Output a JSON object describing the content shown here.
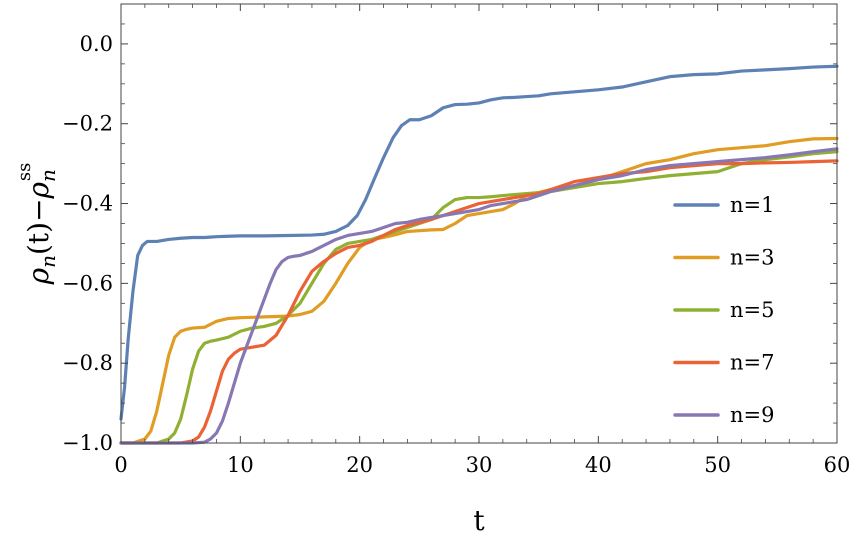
{
  "chart_data": {
    "type": "line",
    "xlabel": "t",
    "ylabel": {
      "rho": "ρ",
      "sub": "n",
      "mid": "(t)−",
      "sup": "ss"
    },
    "xlim": [
      0,
      60
    ],
    "ylim": [
      -1.0,
      0.1
    ],
    "xticks": [
      0,
      10,
      20,
      30,
      40,
      50,
      60
    ],
    "xtick_labels": [
      "0",
      "10",
      "20",
      "30",
      "40",
      "50",
      "60"
    ],
    "yticks": [
      0.0,
      -0.2,
      -0.4,
      -0.6,
      -0.8,
      -1.0
    ],
    "ytick_labels": [
      "0.0",
      "−0.2",
      "−0.4",
      "−0.6",
      "−0.8",
      "−1.0"
    ],
    "grid": false,
    "legend_position": "right",
    "series": [
      {
        "name": "n=1",
        "color": "#5E81B5",
        "x": [
          0,
          0.3,
          0.6,
          1.0,
          1.4,
          1.8,
          2.2,
          3,
          4,
          5,
          6,
          7,
          8,
          9,
          10,
          12,
          14,
          16,
          17,
          18,
          19,
          19.8,
          20.5,
          21.2,
          22,
          22.8,
          23.5,
          24.2,
          25,
          26,
          27,
          28,
          29,
          30,
          31,
          32,
          33,
          34,
          35,
          36,
          38,
          40,
          42,
          44,
          46,
          48,
          50,
          52,
          54,
          56,
          58,
          60
        ],
        "y": [
          -0.94,
          -0.86,
          -0.74,
          -0.62,
          -0.53,
          -0.505,
          -0.495,
          -0.495,
          -0.49,
          -0.487,
          -0.485,
          -0.485,
          -0.483,
          -0.482,
          -0.481,
          -0.481,
          -0.48,
          -0.479,
          -0.477,
          -0.47,
          -0.455,
          -0.43,
          -0.39,
          -0.34,
          -0.285,
          -0.235,
          -0.205,
          -0.19,
          -0.19,
          -0.18,
          -0.16,
          -0.152,
          -0.151,
          -0.148,
          -0.14,
          -0.135,
          -0.134,
          -0.132,
          -0.13,
          -0.125,
          -0.12,
          -0.115,
          -0.108,
          -0.095,
          -0.082,
          -0.077,
          -0.075,
          -0.068,
          -0.065,
          -0.062,
          -0.058,
          -0.056
        ]
      },
      {
        "name": "n=3",
        "color": "#E19C24",
        "x": [
          0,
          1,
          2,
          2.5,
          3,
          3.5,
          4,
          4.5,
          5,
          5.5,
          6,
          7,
          8,
          9,
          10,
          11,
          12,
          13,
          14,
          15,
          16,
          17,
          18,
          19,
          20,
          21,
          22,
          23,
          24,
          25,
          26,
          27,
          28,
          29,
          30,
          31,
          32,
          33,
          34,
          36,
          38,
          40,
          42,
          44,
          46,
          48,
          50,
          52,
          54,
          56,
          58,
          60
        ],
        "y": [
          -1.0,
          -1.0,
          -0.99,
          -0.97,
          -0.92,
          -0.85,
          -0.78,
          -0.735,
          -0.72,
          -0.715,
          -0.712,
          -0.71,
          -0.695,
          -0.688,
          -0.686,
          -0.685,
          -0.684,
          -0.683,
          -0.682,
          -0.678,
          -0.67,
          -0.645,
          -0.6,
          -0.55,
          -0.51,
          -0.49,
          -0.485,
          -0.478,
          -0.47,
          -0.468,
          -0.466,
          -0.465,
          -0.45,
          -0.43,
          -0.425,
          -0.42,
          -0.415,
          -0.4,
          -0.38,
          -0.365,
          -0.355,
          -0.34,
          -0.32,
          -0.3,
          -0.29,
          -0.275,
          -0.265,
          -0.26,
          -0.255,
          -0.245,
          -0.238,
          -0.237
        ]
      },
      {
        "name": "n=5",
        "color": "#8FB032",
        "x": [
          0,
          2,
          3,
          4,
          4.5,
          5,
          5.5,
          6,
          6.5,
          7,
          7.5,
          8,
          9,
          10,
          11,
          12,
          13,
          14,
          15,
          16,
          17,
          18,
          19,
          20,
          21,
          22,
          23,
          24,
          25,
          26,
          27,
          28,
          29,
          30,
          31,
          32,
          34,
          36,
          38,
          40,
          42,
          44,
          46,
          48,
          50,
          52,
          54,
          56,
          58,
          60
        ],
        "y": [
          -1.0,
          -1.0,
          -1.0,
          -0.99,
          -0.975,
          -0.94,
          -0.88,
          -0.815,
          -0.77,
          -0.75,
          -0.745,
          -0.742,
          -0.735,
          -0.72,
          -0.712,
          -0.708,
          -0.7,
          -0.68,
          -0.65,
          -0.6,
          -0.55,
          -0.515,
          -0.5,
          -0.495,
          -0.49,
          -0.48,
          -0.47,
          -0.46,
          -0.45,
          -0.44,
          -0.41,
          -0.39,
          -0.385,
          -0.385,
          -0.383,
          -0.38,
          -0.375,
          -0.37,
          -0.36,
          -0.35,
          -0.345,
          -0.337,
          -0.33,
          -0.325,
          -0.32,
          -0.3,
          -0.29,
          -0.283,
          -0.275,
          -0.27
        ]
      },
      {
        "name": "n=7",
        "color": "#EB6235",
        "x": [
          0,
          4,
          5,
          6,
          6.5,
          7,
          7.5,
          8,
          8.5,
          9,
          9.5,
          10,
          11,
          12,
          13,
          14,
          15,
          16,
          17,
          18,
          19,
          20,
          21,
          22,
          23,
          24,
          25,
          26,
          27,
          28,
          29,
          30,
          31,
          32,
          33,
          34,
          35,
          36,
          38,
          40,
          42,
          44,
          46,
          48,
          50,
          52,
          54,
          56,
          58,
          60
        ],
        "y": [
          -1.0,
          -1.0,
          -1.0,
          -0.995,
          -0.985,
          -0.96,
          -0.92,
          -0.87,
          -0.82,
          -0.79,
          -0.775,
          -0.765,
          -0.76,
          -0.755,
          -0.73,
          -0.68,
          -0.62,
          -0.57,
          -0.545,
          -0.525,
          -0.51,
          -0.505,
          -0.495,
          -0.48,
          -0.465,
          -0.455,
          -0.448,
          -0.44,
          -0.43,
          -0.42,
          -0.41,
          -0.4,
          -0.395,
          -0.39,
          -0.385,
          -0.38,
          -0.375,
          -0.365,
          -0.345,
          -0.335,
          -0.325,
          -0.32,
          -0.31,
          -0.305,
          -0.3,
          -0.3,
          -0.298,
          -0.297,
          -0.295,
          -0.293
        ]
      },
      {
        "name": "n=9",
        "color": "#8778B3",
        "x": [
          0,
          5,
          6,
          7,
          7.5,
          8,
          8.5,
          9,
          9.5,
          10,
          10.5,
          11,
          11.5,
          12,
          12.5,
          13,
          13.5,
          14,
          14.5,
          15,
          15.5,
          16,
          17,
          18,
          19,
          20,
          21,
          22,
          23,
          24,
          25,
          26,
          27,
          28,
          29,
          30,
          31,
          32,
          33,
          34,
          36,
          38,
          40,
          42,
          44,
          46,
          48,
          50,
          52,
          54,
          56,
          58,
          60
        ],
        "y": [
          -1.0,
          -1.0,
          -1.0,
          -0.998,
          -0.99,
          -0.975,
          -0.945,
          -0.9,
          -0.85,
          -0.8,
          -0.76,
          -0.72,
          -0.68,
          -0.64,
          -0.6,
          -0.565,
          -0.545,
          -0.535,
          -0.532,
          -0.53,
          -0.525,
          -0.52,
          -0.505,
          -0.49,
          -0.48,
          -0.475,
          -0.47,
          -0.46,
          -0.45,
          -0.447,
          -0.44,
          -0.435,
          -0.43,
          -0.425,
          -0.42,
          -0.415,
          -0.405,
          -0.4,
          -0.395,
          -0.39,
          -0.37,
          -0.355,
          -0.34,
          -0.33,
          -0.315,
          -0.305,
          -0.3,
          -0.295,
          -0.29,
          -0.285,
          -0.278,
          -0.27,
          -0.263
        ]
      }
    ]
  }
}
